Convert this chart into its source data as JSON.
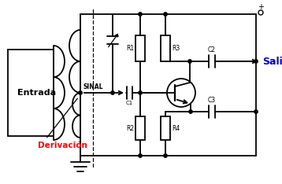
{
  "bg_color": "#ffffff",
  "line_color": "#000000",
  "label_entrada": "Entrada",
  "label_entrada_color": "#000000",
  "label_derivacion": "Derivación",
  "label_derivacion_color": "#ff0000",
  "label_sinal": "SINAL",
  "label_salida": "Salida",
  "label_salida_color": "#0000cc",
  "label_R1": "R1",
  "label_R2": "R2",
  "label_R3": "R3",
  "label_R4": "R4",
  "label_C1": "C1",
  "label_C2": "C2",
  "label_C3": "C3",
  "label_plus": "+"
}
